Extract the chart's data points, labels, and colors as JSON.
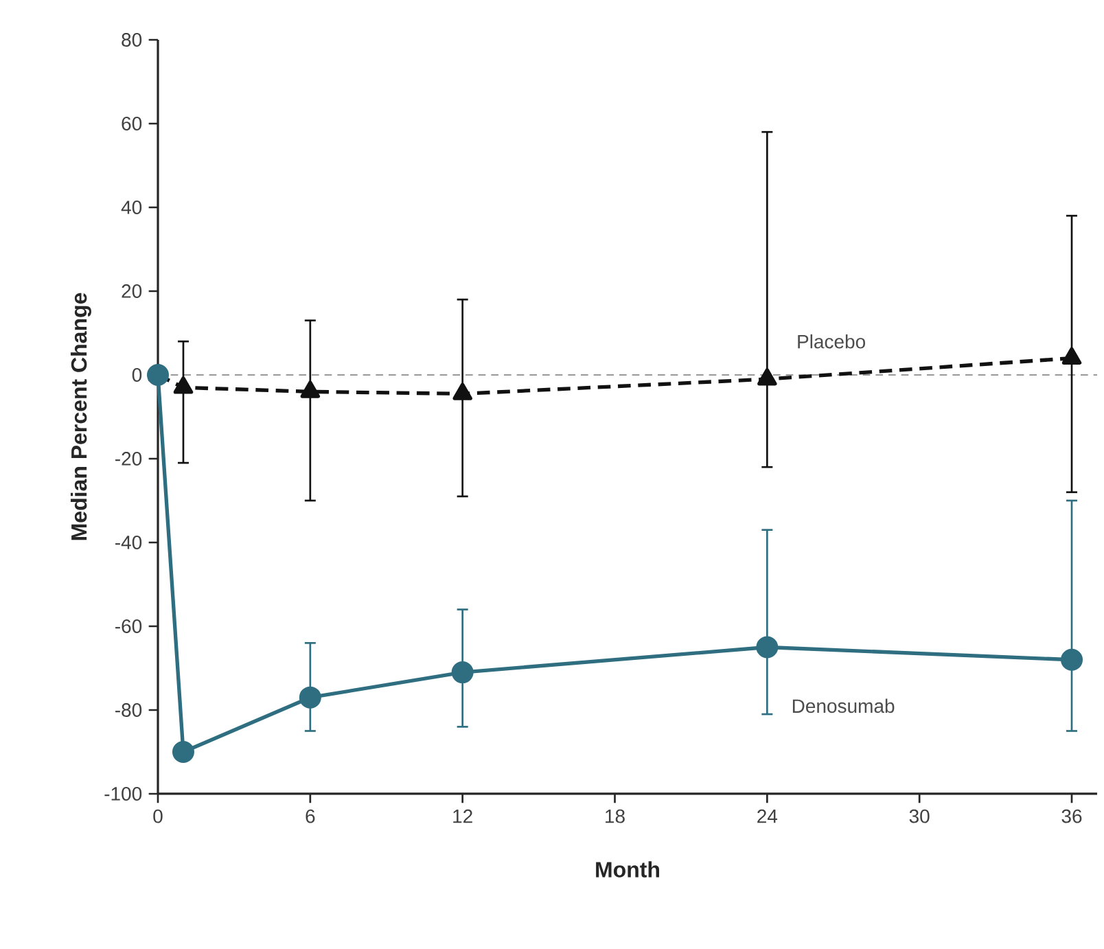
{
  "chart_data": {
    "type": "line",
    "xlabel": "Month",
    "ylabel": "Median Percent Change",
    "xlim": [
      0,
      37
    ],
    "xticks": [
      0,
      6,
      12,
      18,
      24,
      30,
      36
    ],
    "ylim": [
      -100,
      80
    ],
    "yticks": [
      -100,
      -80,
      -60,
      -40,
      -20,
      0,
      20,
      40,
      60,
      80
    ],
    "grid": false,
    "ref_lines": [
      {
        "axis": "y",
        "value": 0,
        "color": "#999999",
        "line_style": "dashed"
      }
    ],
    "series": [
      {
        "name": "Placebo",
        "color": "#111111",
        "marker": "triangle",
        "line_style": "dashed",
        "x": [
          0,
          1,
          6,
          12,
          24,
          36
        ],
        "values": [
          0,
          -3,
          -4,
          -4.5,
          -1,
          4
        ],
        "errors": [
          null,
          [
            -21,
            8
          ],
          [
            -30,
            13
          ],
          [
            -29,
            18
          ],
          [
            -22,
            58
          ],
          [
            -28,
            38
          ]
        ]
      },
      {
        "name": "Denosumab",
        "color": "#2e6e80",
        "marker": "circle",
        "line_style": "solid",
        "x": [
          0,
          1,
          6,
          12,
          24,
          36
        ],
        "values": [
          0,
          -90,
          -77,
          -71,
          -65,
          -68
        ],
        "errors": [
          null,
          null,
          [
            -85,
            -64
          ],
          [
            -84,
            -56
          ],
          [
            -81,
            -37
          ],
          [
            -85,
            -30
          ]
        ]
      }
    ]
  }
}
